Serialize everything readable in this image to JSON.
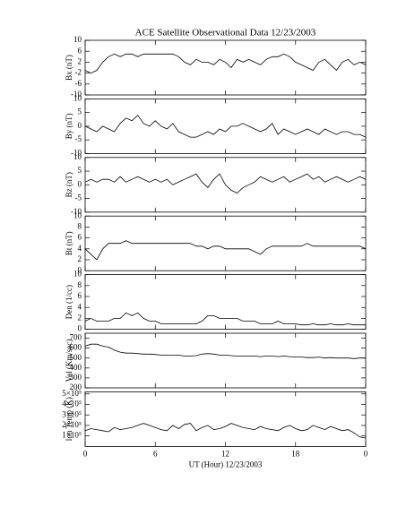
{
  "chart_data": [
    {
      "type": "line",
      "title": "ACE Satellite Observational Data   12/23/2003",
      "ylabel": "Bx (nT)",
      "color": "#000000",
      "x": [
        0,
        0.5,
        1,
        1.5,
        2,
        2.5,
        3,
        3.5,
        4,
        4.5,
        5,
        5.5,
        6,
        6.5,
        7,
        7.5,
        8,
        8.5,
        9,
        9.5,
        10,
        10.5,
        11,
        11.5,
        12,
        12.5,
        13,
        13.5,
        14,
        14.5,
        15,
        15.5,
        16,
        16.5,
        17,
        17.5,
        18,
        18.5,
        19,
        19.5,
        20,
        20.5,
        21,
        21.5,
        22,
        22.5,
        23,
        23.5,
        24
      ],
      "values": [
        -1,
        -2,
        -1,
        2,
        4,
        5,
        4,
        5,
        5,
        4,
        5,
        5,
        5,
        5,
        5,
        5,
        4,
        2,
        1,
        3,
        2,
        2,
        1,
        3,
        2,
        0,
        3,
        2,
        3,
        2,
        1,
        3,
        4,
        4,
        5,
        4,
        2,
        1,
        0,
        -1,
        2,
        3,
        1,
        -1,
        2,
        3,
        1,
        2,
        1
      ],
      "ylim": [
        -10,
        10
      ],
      "yticks": [
        -10,
        -6,
        -2,
        2,
        6,
        10
      ]
    },
    {
      "type": "line",
      "ylabel": "By (nT)",
      "color": "#000000",
      "x": [
        0,
        0.5,
        1,
        1.5,
        2,
        2.5,
        3,
        3.5,
        4,
        4.5,
        5,
        5.5,
        6,
        6.5,
        7,
        7.5,
        8,
        8.5,
        9,
        9.5,
        10,
        10.5,
        11,
        11.5,
        12,
        12.5,
        13,
        13.5,
        14,
        14.5,
        15,
        15.5,
        16,
        16.5,
        17,
        17.5,
        18,
        18.5,
        19,
        19.5,
        20,
        20.5,
        21,
        21.5,
        22,
        22.5,
        23,
        23.5,
        24
      ],
      "values": [
        0,
        -1,
        -2,
        0,
        -1,
        -2,
        1,
        3,
        2,
        4,
        1,
        0,
        2,
        0,
        -1,
        1,
        -2,
        -3,
        -4,
        -4,
        -3,
        -2,
        -3,
        -1,
        -2,
        0,
        0,
        1,
        0,
        -1,
        -2,
        -1,
        1,
        -3,
        -1,
        -2,
        -3,
        -2,
        -1,
        -2,
        -3,
        -1,
        -2,
        -3,
        -2,
        -2,
        -3,
        -3,
        -4
      ],
      "ylim": [
        -10,
        10
      ],
      "yticks": [
        -10,
        -5,
        0,
        5,
        10
      ]
    },
    {
      "type": "line",
      "ylabel": "Bz (nT)",
      "color": "#000000",
      "x": [
        0,
        0.5,
        1,
        1.5,
        2,
        2.5,
        3,
        3.5,
        4,
        4.5,
        5,
        5.5,
        6,
        6.5,
        7,
        7.5,
        8,
        8.5,
        9,
        9.5,
        10,
        10.5,
        11,
        11.5,
        12,
        12.5,
        13,
        13.5,
        14,
        14.5,
        15,
        15.5,
        16,
        16.5,
        17,
        17.5,
        18,
        18.5,
        19,
        19.5,
        20,
        20.5,
        21,
        21.5,
        22,
        22.5,
        23,
        23.5,
        24
      ],
      "values": [
        1,
        2,
        1,
        2,
        2,
        1,
        3,
        1,
        2,
        3,
        2,
        1,
        2,
        1,
        2,
        0,
        1,
        2,
        3,
        4,
        1,
        -1,
        2,
        4,
        0,
        -2,
        -3,
        -1,
        0,
        1,
        3,
        2,
        1,
        2,
        3,
        1,
        2,
        3,
        4,
        2,
        3,
        1,
        2,
        3,
        2,
        1,
        2,
        3,
        2
      ],
      "ylim": [
        -10,
        10
      ],
      "yticks": [
        -10,
        -5,
        0,
        5,
        10
      ]
    },
    {
      "type": "line",
      "ylabel": "Bt (nT)",
      "color": "#000000",
      "x": [
        0,
        0.5,
        1,
        1.5,
        2,
        2.5,
        3,
        3.5,
        4,
        4.5,
        5,
        5.5,
        6,
        6.5,
        7,
        7.5,
        8,
        8.5,
        9,
        9.5,
        10,
        10.5,
        11,
        11.5,
        12,
        12.5,
        13,
        13.5,
        14,
        14.5,
        15,
        15.5,
        16,
        16.5,
        17,
        17.5,
        18,
        18.5,
        19,
        19.5,
        20,
        20.5,
        21,
        21.5,
        22,
        22.5,
        23,
        23.5,
        24
      ],
      "values": [
        4,
        3,
        2,
        4,
        5,
        5,
        5,
        5.5,
        5,
        5,
        5,
        5,
        5,
        5,
        5,
        5,
        5,
        5,
        5,
        4.5,
        4.5,
        4,
        4.5,
        4.5,
        4,
        4,
        4,
        4,
        4,
        3.5,
        3,
        4,
        4.5,
        4.5,
        4.5,
        4.5,
        4.5,
        4.5,
        5,
        4.5,
        4.5,
        4.5,
        4.5,
        4.5,
        4.5,
        4.5,
        4.5,
        4.5,
        4
      ],
      "ylim": [
        0,
        10
      ],
      "yticks": [
        0,
        2,
        4,
        6,
        8,
        10
      ]
    },
    {
      "type": "line",
      "ylabel": "Den (1/cc)",
      "color": "#000000",
      "x": [
        0,
        0.5,
        1,
        1.5,
        2,
        2.5,
        3,
        3.5,
        4,
        4.5,
        5,
        5.5,
        6,
        6.5,
        7,
        7.5,
        8,
        8.5,
        9,
        9.5,
        10,
        10.5,
        11,
        11.5,
        12,
        12.5,
        13,
        13.5,
        14,
        14.5,
        15,
        15.5,
        16,
        16.5,
        17,
        17.5,
        18,
        18.5,
        19,
        19.5,
        20,
        20.5,
        21,
        21.5,
        22,
        22.5,
        23,
        23.5,
        24
      ],
      "values": [
        1.5,
        2,
        1.5,
        1.5,
        1.5,
        2,
        2,
        3,
        2.5,
        3,
        2,
        1.5,
        1.5,
        1,
        1,
        1,
        1,
        1,
        1,
        1,
        1.5,
        2.5,
        2.5,
        2,
        2,
        2,
        2,
        1.5,
        1.5,
        1.5,
        1,
        1,
        1,
        1.5,
        1,
        1,
        1,
        0.8,
        0.8,
        1,
        0.8,
        0.8,
        1,
        0.8,
        0.8,
        1,
        0.8,
        0.8,
        0.8
      ],
      "ylim": [
        0,
        10
      ],
      "yticks": [
        0,
        2,
        4,
        6,
        8,
        10
      ]
    },
    {
      "type": "line",
      "ylabel": "Vel (Km/sec)",
      "color": "#000000",
      "x": [
        0,
        0.5,
        1,
        1.5,
        2,
        2.5,
        3,
        3.5,
        4,
        4.5,
        5,
        5.5,
        6,
        6.5,
        7,
        7.5,
        8,
        8.5,
        9,
        9.5,
        10,
        10.5,
        11,
        11.5,
        12,
        12.5,
        13,
        13.5,
        14,
        14.5,
        15,
        15.5,
        16,
        16.5,
        17,
        17.5,
        18,
        18.5,
        19,
        19.5,
        20,
        20.5,
        21,
        21.5,
        22,
        22.5,
        23,
        23.5,
        24
      ],
      "values": [
        620,
        640,
        640,
        620,
        610,
        580,
        560,
        550,
        550,
        545,
        540,
        540,
        535,
        530,
        530,
        530,
        530,
        520,
        520,
        525,
        540,
        545,
        540,
        530,
        530,
        525,
        520,
        520,
        520,
        520,
        515,
        520,
        520,
        515,
        520,
        515,
        510,
        510,
        505,
        505,
        510,
        500,
        505,
        500,
        500,
        500,
        495,
        500,
        500
      ],
      "ylim": [
        200,
        750
      ],
      "yticks": [
        200,
        300,
        400,
        500,
        600,
        700
      ]
    },
    {
      "type": "line",
      "ylabel": "Ion Temp (K)",
      "xlabel": "UT (Hour)   12/23/2003",
      "color": "#000000",
      "x": [
        0,
        0.5,
        1,
        1.5,
        2,
        2.5,
        3,
        3.5,
        4,
        4.5,
        5,
        5.5,
        6,
        6.5,
        7,
        7.5,
        8,
        8.5,
        9,
        9.5,
        10,
        10.5,
        11,
        11.5,
        12,
        12.5,
        13,
        13.5,
        14,
        14.5,
        15,
        15.5,
        16,
        16.5,
        17,
        17.5,
        18,
        18.5,
        19,
        19.5,
        20,
        20.5,
        21,
        21.5,
        22,
        22.5,
        23,
        23.5,
        24
      ],
      "values": [
        150000,
        170000,
        160000,
        150000,
        140000,
        180000,
        160000,
        170000,
        180000,
        200000,
        220000,
        200000,
        180000,
        160000,
        150000,
        200000,
        170000,
        210000,
        220000,
        150000,
        180000,
        200000,
        160000,
        170000,
        190000,
        220000,
        200000,
        180000,
        170000,
        160000,
        190000,
        170000,
        160000,
        150000,
        180000,
        200000,
        170000,
        150000,
        160000,
        200000,
        180000,
        160000,
        190000,
        170000,
        150000,
        160000,
        130000,
        90000,
        80000
      ],
      "ylim": [
        0,
        520000
      ],
      "yticks": [
        {
          "value": 100000,
          "label": "1×10⁵"
        },
        {
          "value": 200000,
          "label": "2×10⁵"
        },
        {
          "value": 300000,
          "label": "3×10⁵"
        },
        {
          "value": 400000,
          "label": "4×10⁵"
        },
        {
          "value": 500000,
          "label": "5×10⁵"
        }
      ],
      "xlim": [
        0,
        24
      ],
      "xticks": [
        0,
        6,
        12,
        18,
        {
          "value": 24,
          "label": "0"
        }
      ]
    }
  ]
}
